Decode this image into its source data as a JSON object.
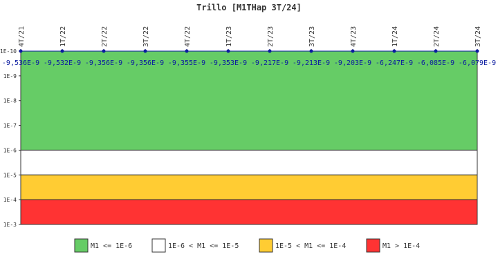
{
  "chart_data": {
    "type": "line",
    "title": "Trillo [M1THap 3T/24]",
    "x": [
      "4T/21",
      "1T/22",
      "2T/22",
      "3T/22",
      "4T/22",
      "1T/23",
      "2T/23",
      "3T/23",
      "4T/23",
      "1T/24",
      "2T/24",
      "3T/24"
    ],
    "values": [
      -9.536e-09,
      -9.532e-09,
      -9.356e-09,
      -9.356e-09,
      -9.355e-09,
      -9.353e-09,
      -9.217e-09,
      -9.213e-09,
      -9.203e-09,
      -6.247e-09,
      -6.085e-09,
      -6.079e-09
    ],
    "value_labels": [
      "-9,536E-9",
      "-9,532E-9",
      "-9,356E-9",
      "-9,356E-9",
      "-9,355E-9",
      "-9,353E-9",
      "-9,217E-9",
      "-9,213E-9",
      "-9,203E-9",
      "-6,247E-9",
      "-6,085E-9",
      "-6,079E-9"
    ],
    "y_scale": "log",
    "y_ticks": [
      "1E-10",
      "1E-9",
      "1E-8",
      "1E-7",
      "1E-6",
      "1E-5",
      "1E-4",
      "1E-3"
    ],
    "ylim": [
      1e-10,
      0.001
    ],
    "series_color": "#0a1aa0",
    "bands": [
      {
        "label": "M1 <= 1E-6",
        "from": 1e-10,
        "to": 1e-06,
        "color": "#66cc66"
      },
      {
        "label": "1E-6 < M1 <= 1E-5",
        "from": 1e-06,
        "to": 1e-05,
        "color": "#ffffff"
      },
      {
        "label": "1E-5 < M1 <= 1E-4",
        "from": 1e-05,
        "to": 0.0001,
        "color": "#ffcc33"
      },
      {
        "label": "M1 > 1E-4",
        "from": 0.0001,
        "to": 0.001,
        "color": "#ff3333"
      }
    ],
    "legend_position": "bottom"
  }
}
